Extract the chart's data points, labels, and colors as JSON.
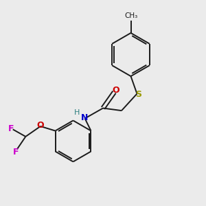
{
  "background_color": "#ebebeb",
  "bond_color": "#1a1a1a",
  "atom_colors": {
    "S": "#999900",
    "N": "#0000cc",
    "O": "#cc0000",
    "F": "#cc00cc",
    "H": "#2f8080",
    "C": "#1a1a1a",
    "CH3": "#1a1a1a"
  },
  "figsize": [
    3.0,
    3.0
  ],
  "dpi": 100,
  "lw": 1.4
}
